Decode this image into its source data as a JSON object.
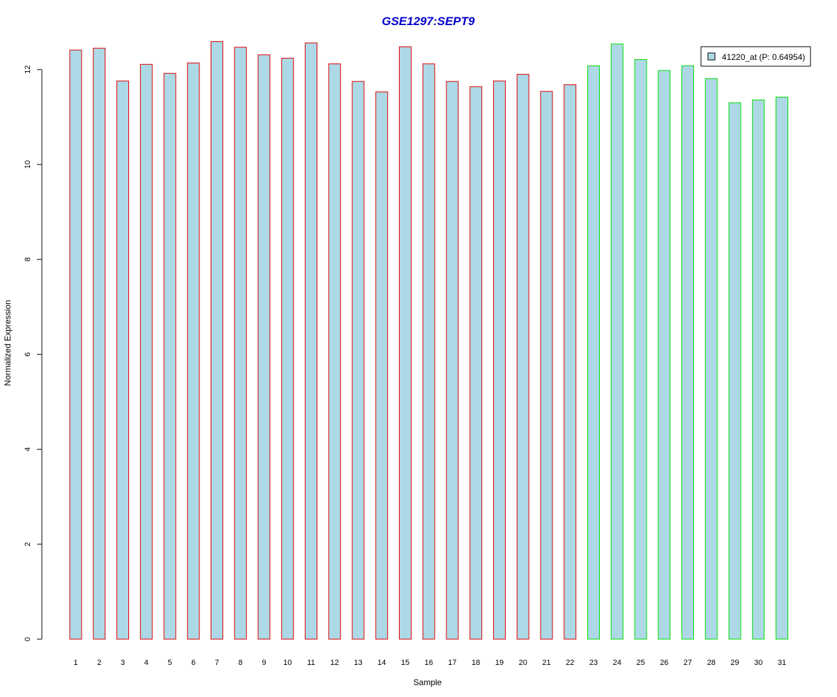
{
  "chart_data": {
    "type": "bar",
    "title": "GSE1297:SEPT9",
    "xlabel": "Sample",
    "ylabel": "Normalized Expression",
    "ylim": [
      0,
      12.6
    ],
    "yticks": [
      0,
      2,
      4,
      6,
      8,
      10,
      12
    ],
    "grid": false,
    "legend": {
      "position": "top-right",
      "label": "41220_at (P: 0.64954)"
    },
    "categories": [
      "1",
      "2",
      "3",
      "4",
      "5",
      "6",
      "7",
      "8",
      "9",
      "10",
      "11",
      "12",
      "13",
      "14",
      "15",
      "16",
      "17",
      "18",
      "19",
      "20",
      "21",
      "22",
      "23",
      "24",
      "25",
      "26",
      "27",
      "28",
      "29",
      "30",
      "31"
    ],
    "values": [
      12.41,
      12.45,
      11.76,
      12.11,
      11.92,
      12.14,
      12.59,
      12.47,
      12.31,
      12.24,
      12.56,
      12.12,
      11.75,
      11.53,
      12.48,
      12.12,
      11.75,
      11.64,
      11.76,
      11.9,
      11.54,
      11.68,
      12.08,
      12.54,
      12.21,
      11.98,
      12.08,
      11.81,
      11.3,
      11.36,
      11.42
    ],
    "groups": [
      {
        "samples": [
          1,
          22
        ],
        "border_color": "#e00000"
      },
      {
        "samples": [
          23,
          31
        ],
        "border_color": "#00e000"
      }
    ],
    "fill_color": "#add8e6",
    "title_color": "#0000cc"
  }
}
